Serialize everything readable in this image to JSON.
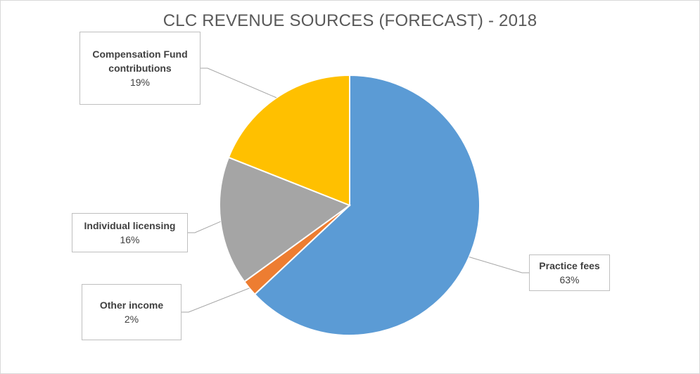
{
  "chart_data": {
    "type": "pie",
    "title": "CLC REVENUE SOURCES (FORECAST) - 2018",
    "slices": [
      {
        "name": "Practice fees",
        "value": 63,
        "label": "63%",
        "color": "#5b9bd5"
      },
      {
        "name": "Other income",
        "value": 2,
        "label": "2%",
        "color": "#ed7d31"
      },
      {
        "name": "Individual licensing",
        "value": 16,
        "label": "16%",
        "color": "#a5a5a5"
      },
      {
        "name": "Compensation Fund contributions",
        "value": 19,
        "label": "19%",
        "color": "#ffc000"
      }
    ],
    "legend": "none",
    "data_labels": "callout"
  }
}
